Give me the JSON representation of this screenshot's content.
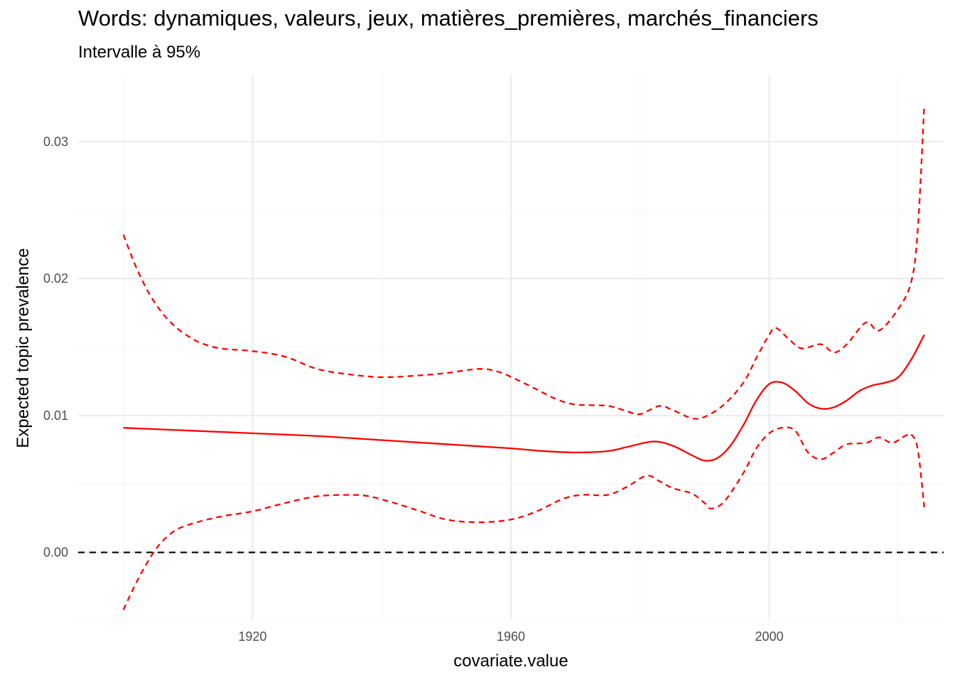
{
  "chart_data": {
    "type": "line",
    "title": "Words: dynamiques, valeurs, jeux, matières_premières, marchés_financiers",
    "subtitle": "Intervalle à 95%",
    "xlabel": "covariate.value",
    "ylabel": "Expected topic prevalence",
    "xlim": [
      1893,
      2027
    ],
    "ylim": [
      -0.0049,
      0.0349
    ],
    "x_ticks": [
      1920,
      1960,
      2000
    ],
    "x_tick_labels": [
      "1920",
      "1960",
      "2000"
    ],
    "x_minor_ticks": [
      1900,
      1940,
      1980,
      2020
    ],
    "y_ticks": [
      0.0,
      0.01,
      0.02,
      0.03
    ],
    "y_tick_labels": [
      "0.00",
      "0.01",
      "0.02",
      "0.03"
    ],
    "y_minor_ticks": [
      -0.005,
      0.005,
      0.015,
      0.025
    ],
    "grid": true,
    "legend": "none",
    "reference_line": {
      "y": 0.0,
      "style": "dashed",
      "color": "#000000"
    },
    "series": [
      {
        "role": "estimate",
        "style": "solid",
        "color": "#ff0000",
        "x": [
          1900,
          1910,
          1920,
          1930,
          1940,
          1950,
          1960,
          1965,
          1970,
          1975,
          1978,
          1982,
          1985,
          1988,
          1990,
          1992,
          1994,
          1996,
          1998,
          2000,
          2002,
          2004,
          2006,
          2008,
          2010,
          2012,
          2014,
          2016,
          2018,
          2020,
          2022,
          2024
        ],
        "y": [
          0.0091,
          0.0089,
          0.0087,
          0.0085,
          0.0082,
          0.0079,
          0.0076,
          0.0074,
          0.0073,
          0.0074,
          0.0077,
          0.0081,
          0.0078,
          0.0071,
          0.0067,
          0.0069,
          0.0078,
          0.0093,
          0.0111,
          0.0123,
          0.0124,
          0.0118,
          0.0109,
          0.0105,
          0.0106,
          0.0111,
          0.0118,
          0.0122,
          0.0124,
          0.0128,
          0.0141,
          0.0159
        ]
      },
      {
        "role": "upper 95%",
        "style": "dashed",
        "color": "#ff0000",
        "x": [
          1900,
          1902,
          1904,
          1906,
          1908,
          1910,
          1912,
          1915,
          1920,
          1925,
          1930,
          1935,
          1940,
          1945,
          1950,
          1955,
          1958,
          1961,
          1964,
          1967,
          1970,
          1975,
          1978,
          1980,
          1983,
          1985,
          1988,
          1990,
          1993,
          1996,
          1998,
          2000,
          2001,
          2003,
          2005,
          2008,
          2010,
          2012,
          2015,
          2017,
          2020,
          2022,
          2023,
          2024
        ],
        "y": [
          0.0232,
          0.0208,
          0.0189,
          0.0175,
          0.0165,
          0.0158,
          0.0153,
          0.0149,
          0.0147,
          0.0143,
          0.0134,
          0.013,
          0.0128,
          0.0129,
          0.0131,
          0.0134,
          0.0132,
          0.0126,
          0.0119,
          0.0112,
          0.0108,
          0.0107,
          0.0103,
          0.0101,
          0.0107,
          0.0104,
          0.0098,
          0.0099,
          0.0108,
          0.0124,
          0.0142,
          0.0159,
          0.0164,
          0.0156,
          0.0149,
          0.0152,
          0.0146,
          0.0152,
          0.0168,
          0.0162,
          0.0178,
          0.0198,
          0.0236,
          0.0327
        ]
      },
      {
        "role": "lower 95%",
        "style": "dashed",
        "color": "#ff0000",
        "x": [
          1900,
          1902,
          1904,
          1905,
          1906,
          1908,
          1910,
          1913,
          1916,
          1920,
          1925,
          1930,
          1935,
          1938,
          1942,
          1946,
          1950,
          1955,
          1960,
          1964,
          1968,
          1971,
          1975,
          1978,
          1981,
          1983,
          1985,
          1988,
          1990,
          1991,
          1993,
          1996,
          1998,
          2000,
          2002,
          2004,
          2006,
          2008,
          2010,
          2012,
          2015,
          2017,
          2019,
          2021,
          2022,
          2023,
          2024
        ],
        "y": [
          -0.0042,
          -0.0022,
          -0.0005,
          0.0002,
          0.0008,
          0.0016,
          0.002,
          0.0024,
          0.0027,
          0.003,
          0.0036,
          0.0041,
          0.0042,
          0.0041,
          0.0036,
          0.003,
          0.0024,
          0.0022,
          0.0024,
          0.003,
          0.0039,
          0.0042,
          0.0042,
          0.0048,
          0.0056,
          0.0052,
          0.0047,
          0.0043,
          0.0036,
          0.0032,
          0.0037,
          0.0058,
          0.0076,
          0.0087,
          0.0091,
          0.0089,
          0.0073,
          0.0068,
          0.0073,
          0.0079,
          0.008,
          0.0084,
          0.008,
          0.0085,
          0.0086,
          0.0075,
          0.0033
        ]
      }
    ],
    "colors": {
      "series": "#ff0000",
      "zero_line": "#000000",
      "grid_major": "#ebebeb",
      "grid_minor": "#f3f3f3",
      "tick_text": "#4d4d4d"
    }
  }
}
